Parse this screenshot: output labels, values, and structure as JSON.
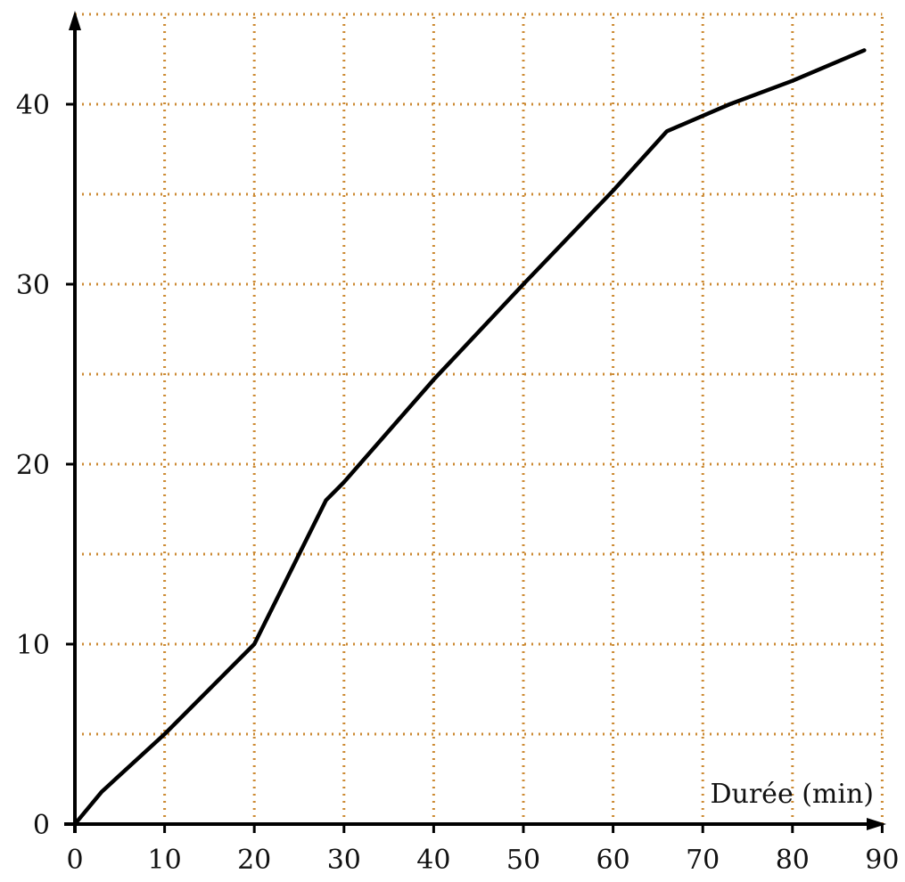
{
  "chart_data": {
    "type": "line",
    "title": "",
    "xlabel": "Durée (min)",
    "ylabel": "",
    "xlim": [
      0,
      90
    ],
    "ylim": [
      0,
      45
    ],
    "x_ticks": [
      0,
      10,
      20,
      30,
      40,
      50,
      60,
      70,
      80,
      90
    ],
    "y_ticks": [
      0,
      10,
      20,
      30,
      40
    ],
    "grid": true,
    "grid_x_step": 10,
    "grid_y_step": 5,
    "grid_style": "dotted",
    "series": [
      {
        "x": [
          0,
          3,
          10,
          20,
          28,
          30,
          40,
          50,
          60,
          66,
          73,
          80,
          88
        ],
        "y": [
          0,
          1.8,
          5,
          10,
          18,
          19,
          24.7,
          30,
          35.2,
          38.5,
          40,
          41.3,
          43
        ]
      }
    ]
  },
  "colors": {
    "grid": "#cc8a33",
    "axes": "#000000",
    "line": "#000000"
  }
}
